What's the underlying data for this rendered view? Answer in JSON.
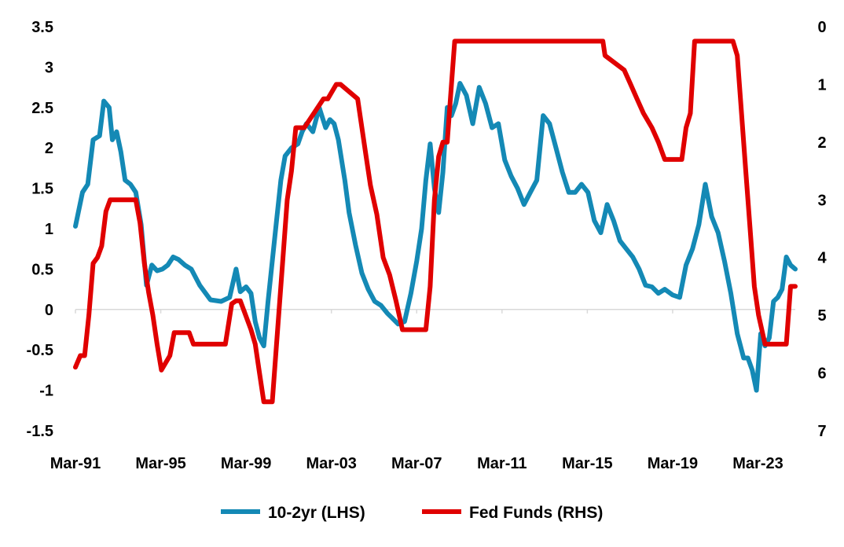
{
  "chart_data": {
    "type": "line",
    "title": "",
    "x_tick_labels": [
      "Mar-91",
      "Mar-95",
      "Mar-99",
      "Mar-03",
      "Mar-07",
      "Mar-11",
      "Mar-15",
      "Mar-19",
      "Mar-23"
    ],
    "x_tick_years": [
      1991.17,
      1995.17,
      1999.17,
      2003.17,
      2007.17,
      2011.17,
      2015.17,
      2019.17,
      2023.17
    ],
    "xlim": [
      1991.17,
      2024.92
    ],
    "left_axis": {
      "label": "",
      "ylim": [
        -1.5,
        3.5
      ],
      "ticks": [
        3.5,
        3,
        2.5,
        2,
        1.5,
        1,
        0.5,
        0,
        -0.5,
        -1,
        -1.5
      ],
      "tick_labels": [
        "3.5",
        "3",
        "2.5",
        "2",
        "1.5",
        "1",
        "0.5",
        "0",
        "-0.5",
        "-1",
        "-1.5"
      ]
    },
    "right_axis": {
      "label": "",
      "ylim": [
        0,
        7
      ],
      "inverted": true,
      "ticks": [
        0,
        1,
        2,
        3,
        4,
        5,
        6,
        7
      ],
      "tick_labels": [
        "0",
        "1",
        "2",
        "3",
        "4",
        "5",
        "6",
        "7"
      ]
    },
    "grid": false,
    "legend_position": "bottom",
    "series": [
      {
        "name": "10-2yr (LHS)",
        "axis": "left",
        "color": "#1489B5",
        "x": [
          1991.17,
          1991.5,
          1991.75,
          1992.0,
          1992.3,
          1992.5,
          1992.75,
          1992.9,
          1993.1,
          1993.3,
          1993.5,
          1993.75,
          1994.0,
          1994.25,
          1994.5,
          1994.75,
          1995.0,
          1995.25,
          1995.5,
          1995.75,
          1996.0,
          1996.3,
          1996.6,
          1997.0,
          1997.5,
          1998.0,
          1998.4,
          1998.7,
          1998.9,
          1999.17,
          1999.4,
          1999.6,
          1999.8,
          2000.0,
          2000.2,
          2000.4,
          2000.6,
          2000.8,
          2001.0,
          2001.3,
          2001.6,
          2001.8,
          2002.0,
          2002.3,
          2002.6,
          2002.9,
          2003.1,
          2003.3,
          2003.5,
          2003.8,
          2004.0,
          2004.3,
          2004.6,
          2004.9,
          2005.2,
          2005.5,
          2005.8,
          2006.0,
          2006.3,
          2006.6,
          2006.9,
          2007.17,
          2007.4,
          2007.6,
          2007.8,
          2008.0,
          2008.2,
          2008.4,
          2008.6,
          2008.8,
          2009.0,
          2009.2,
          2009.5,
          2009.8,
          2010.1,
          2010.4,
          2010.7,
          2011.0,
          2011.3,
          2011.6,
          2011.9,
          2012.2,
          2012.5,
          2012.8,
          2013.1,
          2013.4,
          2013.7,
          2014.0,
          2014.3,
          2014.6,
          2014.9,
          2015.2,
          2015.5,
          2015.8,
          2016.1,
          2016.4,
          2016.7,
          2017.0,
          2017.3,
          2017.6,
          2017.9,
          2018.2,
          2018.5,
          2018.8,
          2019.17,
          2019.5,
          2019.8,
          2020.1,
          2020.4,
          2020.7,
          2021.0,
          2021.3,
          2021.6,
          2021.9,
          2022.2,
          2022.5,
          2022.7,
          2022.9,
          2023.1,
          2023.3,
          2023.5,
          2023.7,
          2023.9,
          2024.1,
          2024.3,
          2024.5,
          2024.7,
          2024.92
        ],
        "values": [
          1.03,
          1.45,
          1.55,
          2.1,
          2.15,
          2.58,
          2.5,
          2.1,
          2.2,
          1.95,
          1.6,
          1.55,
          1.45,
          1.05,
          0.3,
          0.55,
          0.48,
          0.5,
          0.55,
          0.65,
          0.62,
          0.55,
          0.5,
          0.3,
          0.12,
          0.1,
          0.15,
          0.5,
          0.22,
          0.28,
          0.2,
          -0.15,
          -0.35,
          -0.45,
          0.1,
          0.6,
          1.1,
          1.6,
          1.9,
          2.0,
          2.05,
          2.2,
          2.3,
          2.2,
          2.5,
          2.25,
          2.35,
          2.3,
          2.1,
          1.6,
          1.2,
          0.8,
          0.45,
          0.25,
          0.1,
          0.05,
          -0.05,
          -0.1,
          -0.18,
          -0.15,
          0.2,
          0.6,
          1.0,
          1.6,
          2.05,
          1.5,
          1.2,
          1.7,
          2.5,
          2.4,
          2.55,
          2.8,
          2.65,
          2.3,
          2.75,
          2.55,
          2.25,
          2.3,
          1.85,
          1.65,
          1.5,
          1.3,
          1.45,
          1.6,
          2.4,
          2.3,
          2.0,
          1.7,
          1.45,
          1.45,
          1.55,
          1.45,
          1.1,
          0.95,
          1.3,
          1.1,
          0.85,
          0.75,
          0.65,
          0.5,
          0.3,
          0.28,
          0.2,
          0.25,
          0.18,
          0.15,
          0.55,
          0.75,
          1.05,
          1.55,
          1.15,
          0.95,
          0.6,
          0.2,
          -0.3,
          -0.6,
          -0.6,
          -0.75,
          -1.0,
          -0.3,
          -0.45,
          -0.35,
          0.1,
          0.15,
          0.25,
          0.65,
          0.55,
          0.5
        ]
      },
      {
        "name": "Fed Funds (RHS)",
        "axis": "right",
        "color": "#E00000",
        "x": [
          1991.17,
          1991.4,
          1991.6,
          1991.8,
          1992.0,
          1992.2,
          1992.4,
          1992.6,
          1992.8,
          1992.9,
          1994.0,
          1994.2,
          1994.4,
          1994.6,
          1994.8,
          1995.0,
          1995.2,
          1995.6,
          1995.8,
          1996.0,
          1996.2,
          1996.5,
          1996.7,
          1996.9,
          1998.2,
          1998.5,
          1998.7,
          1998.9,
          1999.4,
          1999.6,
          1999.8,
          2000.0,
          2000.2,
          2000.4,
          2000.6,
          2000.9,
          2001.1,
          2001.3,
          2001.5,
          2001.7,
          2001.9,
          2002.8,
          2003.0,
          2003.4,
          2003.6,
          2004.4,
          2004.6,
          2004.8,
          2005.0,
          2005.3,
          2005.6,
          2005.9,
          2006.2,
          2006.5,
          2007.6,
          2007.8,
          2008.0,
          2008.2,
          2008.4,
          2008.6,
          2008.8,
          2008.95,
          2015.9,
          2016.0,
          2016.9,
          2017.2,
          2017.5,
          2017.8,
          2018.2,
          2018.5,
          2018.8,
          2019.6,
          2019.8,
          2020.0,
          2020.2,
          2022.0,
          2022.2,
          2022.4,
          2022.6,
          2022.8,
          2023.0,
          2023.2,
          2023.5,
          2024.5,
          2024.7,
          2024.92
        ],
        "values": [
          5.9,
          5.7,
          5.7,
          5.0,
          4.1,
          4.0,
          3.8,
          3.2,
          3.0,
          3.0,
          3.0,
          3.4,
          4.1,
          4.6,
          5.0,
          5.5,
          5.95,
          5.7,
          5.3,
          5.3,
          5.3,
          5.3,
          5.5,
          5.5,
          5.5,
          4.8,
          4.75,
          4.75,
          5.25,
          5.5,
          6.0,
          6.5,
          6.5,
          6.5,
          5.5,
          4.0,
          3.0,
          2.5,
          1.75,
          1.75,
          1.75,
          1.25,
          1.25,
          1.0,
          1.0,
          1.25,
          1.75,
          2.25,
          2.75,
          3.25,
          4.0,
          4.3,
          4.75,
          5.25,
          5.25,
          4.5,
          3.0,
          2.25,
          2.0,
          2.0,
          1.0,
          0.25,
          0.25,
          0.5,
          0.75,
          1.0,
          1.25,
          1.5,
          1.75,
          2.0,
          2.3,
          2.3,
          1.75,
          1.5,
          0.25,
          0.25,
          0.5,
          1.5,
          2.5,
          3.5,
          4.5,
          5.0,
          5.5,
          5.5,
          4.5,
          4.5
        ]
      }
    ]
  }
}
